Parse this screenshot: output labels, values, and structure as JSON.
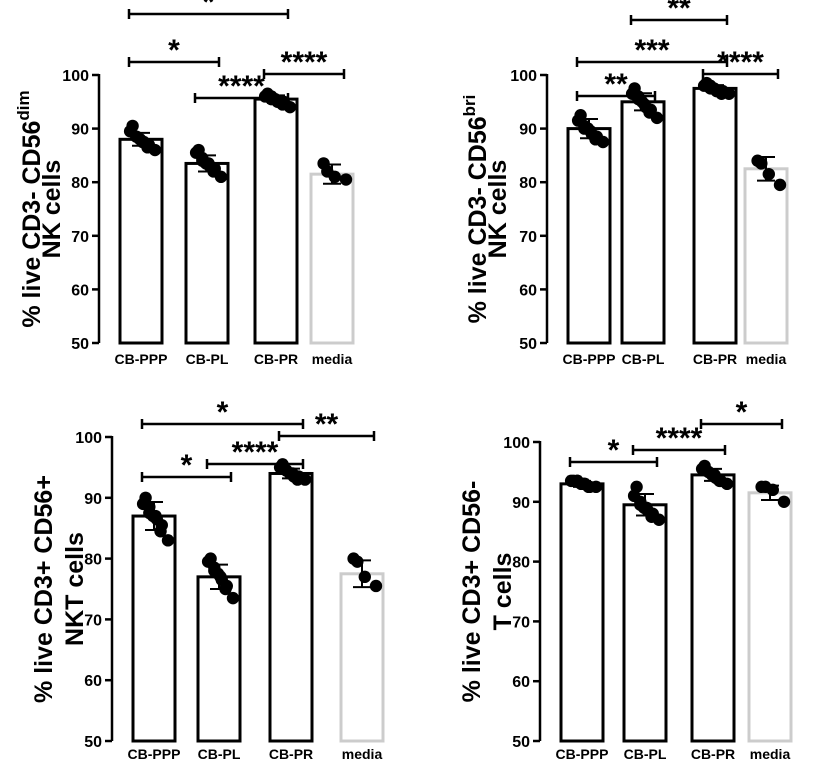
{
  "chart_data": [
    {
      "type": "bar",
      "ylabel_lines": [
        [
          "% live CD3- CD56",
          "dim"
        ],
        [
          "NK cells",
          ""
        ]
      ],
      "ylim": [
        50,
        100
      ],
      "yticks": [
        50,
        60,
        70,
        80,
        90,
        100
      ],
      "categories": [
        "CB-PPP",
        "CB-PL",
        "CB-PR",
        "media"
      ],
      "means": [
        88,
        83.5,
        95.5,
        81.5
      ],
      "sd": [
        1.2,
        1.5,
        0.7,
        1.8
      ],
      "points": [
        [
          90.5,
          89.5,
          88.5,
          88.5,
          88,
          87.5,
          87.5,
          87,
          86.5,
          86
        ],
        [
          86,
          85.5,
          84.5,
          84,
          83.5,
          83.5,
          83,
          82.5,
          82,
          81
        ],
        [
          96.5,
          96,
          96,
          95.5,
          95.5,
          95,
          95,
          95,
          94.5,
          94
        ],
        [
          83.5,
          82,
          81,
          80.5
        ]
      ],
      "bar_colors": [
        "#000000",
        "#000000",
        "#000000",
        "#cccccc"
      ],
      "significance": [
        {
          "from": 0,
          "to": 2,
          "label": "*"
        },
        {
          "from": 0,
          "to": 1,
          "label": "*"
        },
        {
          "from": 1,
          "to": 2,
          "label": "****"
        },
        {
          "from": 2,
          "to": 3,
          "label": "****"
        }
      ]
    },
    {
      "type": "bar",
      "ylabel_lines": [
        [
          "% live CD3- CD56",
          "bri"
        ],
        [
          "NK cells",
          ""
        ]
      ],
      "ylim": [
        50,
        100
      ],
      "yticks": [
        50,
        60,
        70,
        80,
        90,
        100
      ],
      "categories": [
        "CB-PPP",
        "CB-PL",
        "CB-PR",
        "media"
      ],
      "means": [
        90,
        95,
        97.5,
        82.5
      ],
      "sd": [
        1.8,
        1.6,
        0.6,
        2.2
      ],
      "points": [
        [
          92.5,
          91.5,
          90.5,
          90,
          90,
          89.5,
          89,
          88.5,
          88,
          87.5
        ],
        [
          97.5,
          96.5,
          96,
          95.5,
          95,
          94.5,
          94,
          93.5,
          93,
          92
        ],
        [
          98.5,
          98,
          98,
          97.5,
          97.5,
          97,
          97,
          97,
          96.5,
          96.5
        ],
        [
          84,
          83.5,
          81.5,
          79.5
        ]
      ],
      "bar_colors": [
        "#000000",
        "#000000",
        "#000000",
        "#cccccc"
      ],
      "significance": [
        {
          "from": 1,
          "to": 2,
          "label": "**"
        },
        {
          "from": 0,
          "to": 2,
          "label": "***"
        },
        {
          "from": 0,
          "to": 1,
          "label": "**"
        },
        {
          "from": 2,
          "to": 3,
          "label": "****"
        }
      ]
    },
    {
      "type": "bar",
      "ylabel_lines": [
        [
          "% live CD3+ CD56+",
          ""
        ],
        [
          "NKT cells",
          ""
        ]
      ],
      "ylim": [
        50,
        100
      ],
      "yticks": [
        50,
        60,
        70,
        80,
        90,
        100
      ],
      "categories": [
        "CB-PPP",
        "CB-PL",
        "CB-PR",
        "media"
      ],
      "means": [
        87,
        77,
        94,
        77.5
      ],
      "sd": [
        2.3,
        2.0,
        0.8,
        2.2
      ],
      "points": [
        [
          90,
          89,
          88.5,
          87.5,
          87,
          87,
          86.5,
          85.5,
          84.5,
          83
        ],
        [
          80,
          79.5,
          78.5,
          78,
          77.5,
          77,
          76.5,
          75.5,
          75,
          73.5
        ],
        [
          95.5,
          95,
          94.5,
          94.5,
          94,
          94,
          93.5,
          93.5,
          93,
          93
        ],
        [
          80,
          79.5,
          77,
          75.5
        ]
      ],
      "bar_colors": [
        "#000000",
        "#000000",
        "#000000",
        "#cccccc"
      ],
      "significance": [
        {
          "from": 0,
          "to": 2,
          "label": "*"
        },
        {
          "from": 2,
          "to": 3,
          "label": "**"
        },
        {
          "from": 1,
          "to": 2,
          "label": "****"
        },
        {
          "from": 0,
          "to": 1,
          "label": "*"
        }
      ]
    },
    {
      "type": "bar",
      "ylabel_lines": [
        [
          "% live CD3+ CD56-",
          ""
        ],
        [
          "T cells",
          ""
        ]
      ],
      "ylim": [
        50,
        100
      ],
      "yticks": [
        50,
        60,
        70,
        80,
        90,
        100
      ],
      "categories": [
        "CB-PPP",
        "CB-PL",
        "CB-PR",
        "media"
      ],
      "means": [
        93,
        89.5,
        94.5,
        91.5
      ],
      "sd": [
        0.5,
        1.8,
        1.0,
        1.2
      ],
      "points": [
        [
          93.5,
          93.5,
          93.5,
          93.5,
          93,
          93,
          93,
          92.5,
          92.5,
          92.5
        ],
        [
          92.5,
          91,
          90,
          89.5,
          89,
          89,
          88.5,
          88,
          87.5,
          87
        ],
        [
          96,
          95.5,
          95,
          95,
          94.5,
          94.5,
          94,
          93.5,
          93.5,
          93
        ],
        [
          92.5,
          92.5,
          92,
          90
        ]
      ],
      "bar_colors": [
        "#000000",
        "#000000",
        "#000000",
        "#cccccc"
      ],
      "significance": [
        {
          "from": 0,
          "to": 1,
          "label": "*"
        },
        {
          "from": 1,
          "to": 2,
          "label": "****"
        },
        {
          "from": 2,
          "to": 3,
          "label": "*"
        }
      ]
    }
  ]
}
